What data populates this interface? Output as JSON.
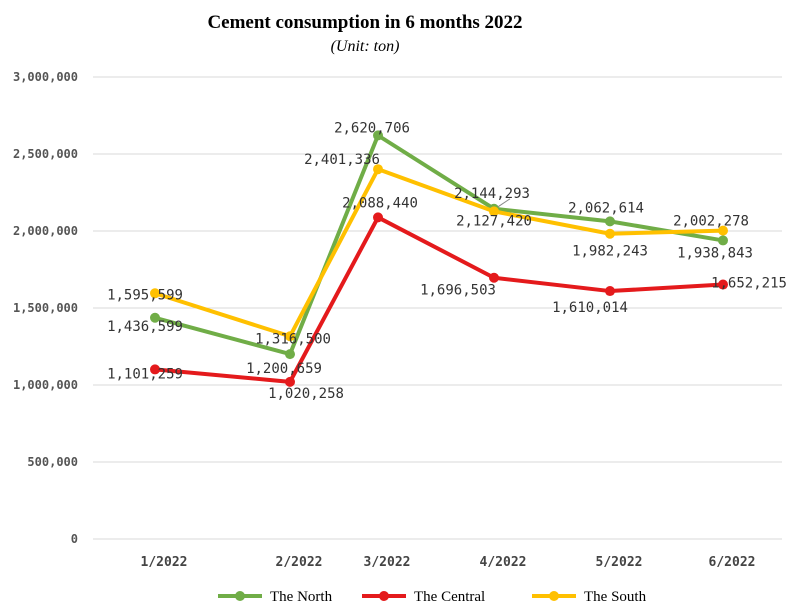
{
  "chart_data": {
    "type": "line",
    "title": "Cement consumption in 6 months 2022",
    "subtitle": "(Unit: ton)",
    "categories": [
      "1/2022",
      "2/2022",
      "3/2022",
      "4/2022",
      "5/2022",
      "6/2022"
    ],
    "ylim": [
      0,
      3000000
    ],
    "yticks": [
      "0",
      "500,000",
      "1,000,000",
      "1,500,000",
      "2,000,000",
      "2,500,000",
      "3,000,000"
    ],
    "ytick_values": [
      0,
      500000,
      1000000,
      1500000,
      2000000,
      2500000,
      3000000
    ],
    "grid": true,
    "legend_position": "bottom",
    "series": [
      {
        "name": "The North",
        "color": "#70ad47",
        "values": [
          1436599,
          1200659,
          2620706,
          2144293,
          2062614,
          1938843
        ],
        "labels": [
          "1,436,599",
          "1,200,659",
          "2,620,706",
          "2,144,293",
          "2,062,614",
          "1,938,843"
        ]
      },
      {
        "name": "The Central",
        "color": "#e41a1c",
        "values": [
          1101259,
          1020258,
          2088440,
          1696503,
          1610014,
          1652215
        ],
        "labels": [
          "1,101,259",
          "1,020,258",
          "2,088,440",
          "1,696,503",
          "1,610,014",
          "1,652,215"
        ]
      },
      {
        "name": "The South",
        "color": "#ffc000",
        "values": [
          1595599,
          1316500,
          2401336,
          2127420,
          1982243,
          2002278
        ],
        "labels": [
          "1,595,599",
          "1,316,500",
          "2,401,336",
          "2,127,420",
          "1,982,243",
          "2,002,278"
        ]
      }
    ]
  }
}
